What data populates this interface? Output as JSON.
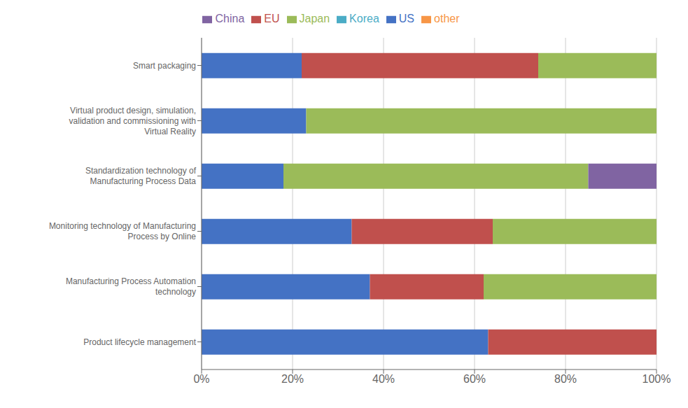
{
  "chart_data": {
    "type": "bar",
    "orientation": "horizontal",
    "stacked": true,
    "grid": true,
    "legend": "top",
    "categories": [
      "Product lifecycle management",
      "Manufacturing Process Automation\ntechnology",
      "Monitoring technology of Manufacturing\nProcess by Online",
      "Standardization technology of\nManufacturing Process Data",
      "Virtual product design, simulation,\nvalidation and commissioning with\nVirtual Reality",
      "Smart packaging"
    ],
    "series": [
      {
        "name": "US",
        "color": "#4472C4",
        "values": [
          63,
          37,
          33,
          18,
          23,
          22
        ]
      },
      {
        "name": "EU",
        "color": "#C0504D",
        "values": [
          37,
          25,
          31,
          0,
          0,
          52
        ]
      },
      {
        "name": "Japan",
        "color": "#9BBB59",
        "values": [
          0,
          38,
          36,
          67,
          77,
          26
        ]
      },
      {
        "name": "China",
        "color": "#8064A2",
        "values": [
          0,
          0,
          0,
          15,
          0,
          0
        ]
      },
      {
        "name": "Korea",
        "color": "#4BACC6",
        "values": [
          0,
          0,
          0,
          0,
          0,
          0
        ]
      },
      {
        "name": "other",
        "color": "#F79646",
        "values": [
          0,
          0,
          0,
          0,
          0,
          0
        ]
      }
    ],
    "xlim": [
      0,
      100
    ],
    "xticks": [
      {
        "value": 0,
        "label": "0%"
      },
      {
        "value": 20,
        "label": "20%"
      },
      {
        "value": 40,
        "label": "40%"
      },
      {
        "value": 60,
        "label": "60%"
      },
      {
        "value": 80,
        "label": "80%"
      },
      {
        "value": 100,
        "label": "100%"
      }
    ]
  }
}
